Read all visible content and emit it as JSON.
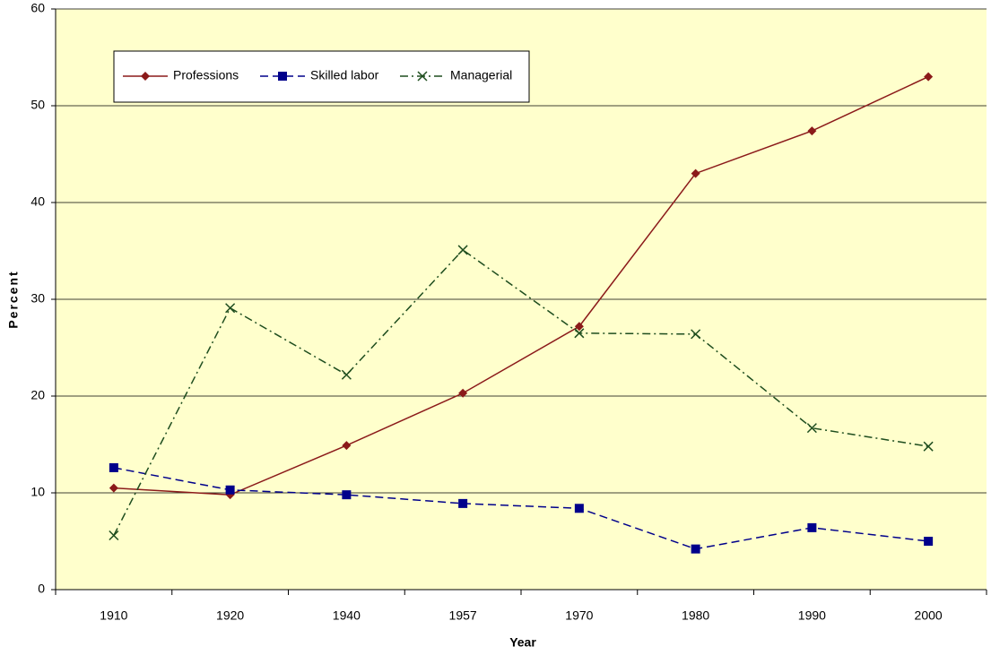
{
  "chart_data": {
    "type": "line",
    "x_label": "Year",
    "y_label": "Percent",
    "categories": [
      "1910",
      "1920",
      "1940",
      "1957",
      "1970",
      "1980",
      "1990",
      "2000"
    ],
    "series": [
      {
        "name": "Professions",
        "color": "#8b1a1a",
        "marker": "diamond",
        "line_style": "solid",
        "values": [
          10.5,
          9.8,
          14.9,
          20.3,
          27.2,
          43,
          47.4,
          53
        ]
      },
      {
        "name": "Skilled labor",
        "color": "#00008b",
        "marker": "square",
        "line_style": "dashed",
        "values": [
          12.6,
          10.3,
          9.8,
          8.9,
          8.4,
          4.2,
          6.4,
          5.0
        ]
      },
      {
        "name": "Managerial",
        "color": "#1e4d1e",
        "marker": "x",
        "line_style": "dashdot",
        "values": [
          5.6,
          29.1,
          22.2,
          35.1,
          26.5,
          26.4,
          16.7,
          14.8
        ]
      }
    ],
    "ylim": [
      0,
      60
    ],
    "yticks": [
      0,
      10,
      20,
      30,
      40,
      50,
      60
    ],
    "grid": true
  }
}
